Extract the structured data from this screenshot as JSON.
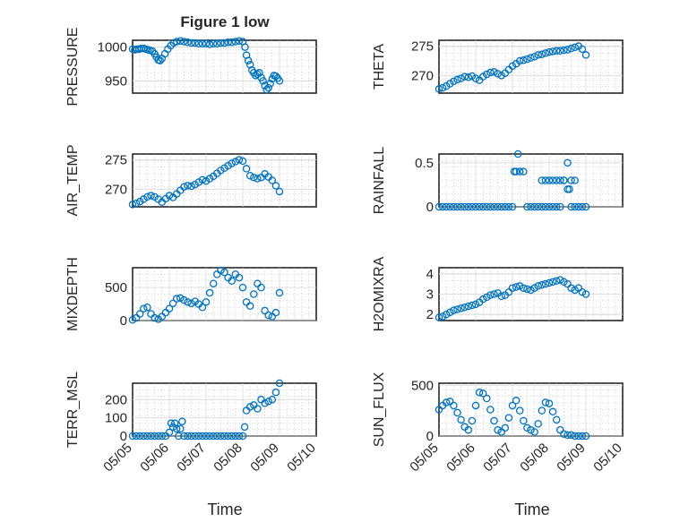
{
  "figure": {
    "title": "Figure 1 low",
    "xlabel": "Time",
    "marker_color": "#0072bd"
  },
  "chart_data": [
    {
      "type": "scatter",
      "title": "Figure 1 low",
      "ylabel": "PRESSURE",
      "xlabel": "",
      "x_unit": "days since 05/05",
      "xlim": [
        0,
        5
      ],
      "xticks": [],
      "ylim": [
        932,
        1010
      ],
      "yticks": [
        950,
        1000
      ],
      "grid": "major-and-minor",
      "x": [
        0.0,
        0.06,
        0.12,
        0.18,
        0.24,
        0.3,
        0.36,
        0.42,
        0.48,
        0.54,
        0.6,
        0.65,
        0.7,
        0.75,
        0.8,
        0.88,
        0.96,
        1.04,
        1.12,
        1.2,
        1.3,
        1.4,
        1.5,
        1.6,
        1.7,
        1.8,
        1.9,
        2.0,
        2.1,
        2.2,
        2.3,
        2.4,
        2.5,
        2.6,
        2.7,
        2.8,
        2.9,
        3.0,
        3.06,
        3.1,
        3.15,
        3.2,
        3.25,
        3.3,
        3.35,
        3.4,
        3.45,
        3.5,
        3.55,
        3.6,
        3.65,
        3.7,
        3.75,
        3.8,
        3.85,
        3.9,
        3.95,
        4.0
      ],
      "y": [
        997,
        996,
        997,
        997,
        998,
        998,
        997,
        996,
        995,
        994,
        990,
        985,
        981,
        980,
        983,
        990,
        997,
        1002,
        1006,
        1008,
        1009,
        1008,
        1007,
        1006,
        1006,
        1005,
        1005,
        1005,
        1004,
        1005,
        1005,
        1006,
        1006,
        1007,
        1007,
        1008,
        1009,
        1008,
        1000,
        988,
        980,
        974,
        966,
        962,
        958,
        960,
        962,
        955,
        950,
        943,
        937,
        940,
        946,
        953,
        958,
        957,
        954,
        950
      ]
    },
    {
      "type": "scatter",
      "title": "",
      "ylabel": "THETA",
      "xlabel": "",
      "x_unit": "days since 05/05",
      "xlim": [
        0,
        5
      ],
      "xticks": [],
      "ylim": [
        267,
        276
      ],
      "yticks": [
        270,
        275
      ],
      "grid": "major-and-minor",
      "x": [
        0.0,
        0.1,
        0.2,
        0.3,
        0.4,
        0.5,
        0.6,
        0.7,
        0.8,
        0.9,
        1.0,
        1.1,
        1.2,
        1.3,
        1.4,
        1.5,
        1.6,
        1.7,
        1.8,
        1.9,
        2.0,
        2.1,
        2.2,
        2.3,
        2.4,
        2.5,
        2.6,
        2.7,
        2.8,
        2.9,
        3.0,
        3.1,
        3.2,
        3.3,
        3.4,
        3.5,
        3.6,
        3.7,
        3.8,
        3.9,
        4.0
      ],
      "y": [
        267.7,
        267.9,
        268.2,
        268.6,
        269.0,
        269.3,
        269.5,
        269.8,
        269.7,
        269.9,
        269.5,
        269.2,
        269.8,
        270.2,
        270.5,
        270.6,
        270.3,
        270.0,
        270.4,
        271.0,
        271.6,
        272.0,
        272.5,
        272.6,
        272.8,
        273.0,
        273.2,
        273.5,
        273.6,
        273.8,
        274.0,
        274.1,
        274.2,
        274.2,
        274.3,
        274.4,
        274.6,
        274.8,
        275.0,
        274.5,
        273.5
      ]
    },
    {
      "type": "scatter",
      "title": "",
      "ylabel": "AIR_TEMP",
      "xlabel": "",
      "x_unit": "days since 05/05",
      "xlim": [
        0,
        5
      ],
      "xticks": [],
      "ylim": [
        267,
        276
      ],
      "yticks": [
        270,
        275
      ],
      "grid": "major-and-minor",
      "x": [
        0.0,
        0.1,
        0.2,
        0.3,
        0.4,
        0.5,
        0.6,
        0.7,
        0.8,
        0.9,
        1.0,
        1.1,
        1.2,
        1.3,
        1.4,
        1.5,
        1.6,
        1.7,
        1.8,
        1.9,
        2.0,
        2.1,
        2.2,
        2.3,
        2.4,
        2.5,
        2.6,
        2.7,
        2.8,
        2.9,
        3.0,
        3.1,
        3.2,
        3.3,
        3.4,
        3.5,
        3.6,
        3.7,
        3.8,
        3.9,
        4.0
      ],
      "y": [
        267.4,
        267.6,
        267.9,
        268.3,
        268.7,
        268.9,
        268.7,
        268.3,
        267.8,
        268.4,
        268.9,
        268.6,
        269.2,
        269.8,
        270.4,
        270.6,
        270.5,
        270.8,
        271.2,
        271.6,
        271.4,
        271.8,
        272.2,
        272.7,
        273.2,
        273.6,
        274.0,
        274.4,
        274.7,
        275.0,
        274.8,
        273.5,
        272.3,
        272.0,
        271.8,
        272.0,
        272.6,
        272.1,
        271.5,
        270.6,
        269.6
      ]
    },
    {
      "type": "scatter",
      "title": "",
      "ylabel": "RAINFALL",
      "xlabel": "",
      "x_unit": "days since 05/05",
      "xlim": [
        0,
        5
      ],
      "xticks": [],
      "ylim": [
        0,
        0.6
      ],
      "yticks": [
        0,
        0.5
      ],
      "grid": "major-and-minor",
      "x": [
        0.0,
        0.1,
        0.2,
        0.3,
        0.4,
        0.5,
        0.6,
        0.7,
        0.8,
        0.9,
        1.0,
        1.1,
        1.2,
        1.3,
        1.4,
        1.5,
        1.6,
        1.7,
        1.8,
        1.9,
        2.0,
        2.05,
        2.1,
        2.15,
        2.2,
        2.3,
        2.4,
        2.5,
        2.6,
        2.7,
        2.8,
        2.9,
        3.0,
        3.1,
        3.2,
        3.3,
        3.4,
        3.5,
        3.6,
        3.7,
        3.8,
        3.9,
        4.0,
        2.8,
        2.9,
        3.0,
        3.1,
        3.2,
        3.3,
        3.4,
        3.5,
        3.55,
        3.6,
        3.7
      ],
      "y": [
        0,
        0,
        0,
        0,
        0,
        0,
        0,
        0,
        0,
        0,
        0,
        0,
        0,
        0,
        0,
        0,
        0,
        0,
        0,
        0,
        0,
        0.4,
        0.4,
        0.6,
        0.4,
        0.4,
        0,
        0,
        0,
        0,
        0,
        0,
        0,
        0,
        0,
        0,
        0.3,
        0.5,
        0,
        0,
        0,
        0,
        0,
        0.3,
        0.3,
        0.3,
        0.3,
        0.3,
        0.3,
        0.3,
        0.2,
        0.2,
        0.3,
        0.3
      ]
    },
    {
      "type": "scatter",
      "title": "",
      "ylabel": "MIXDEPTH",
      "xlabel": "",
      "x_unit": "days since 05/05",
      "xlim": [
        0,
        5
      ],
      "xticks": [],
      "ylim": [
        0,
        800
      ],
      "yticks": [
        0,
        500
      ],
      "grid": "major-and-minor",
      "x": [
        0.0,
        0.1,
        0.2,
        0.3,
        0.4,
        0.5,
        0.6,
        0.7,
        0.8,
        0.9,
        1.0,
        1.1,
        1.2,
        1.3,
        1.4,
        1.5,
        1.6,
        1.7,
        1.8,
        1.9,
        2.0,
        2.1,
        2.2,
        2.3,
        2.4,
        2.5,
        2.6,
        2.7,
        2.8,
        2.9,
        3.0,
        3.1,
        3.2,
        3.3,
        3.4,
        3.5,
        3.6,
        3.7,
        3.8,
        3.9,
        4.0
      ],
      "y": [
        10,
        40,
        100,
        180,
        200,
        100,
        40,
        20,
        60,
        120,
        180,
        260,
        330,
        340,
        310,
        280,
        260,
        290,
        250,
        200,
        280,
        420,
        560,
        700,
        760,
        730,
        650,
        600,
        700,
        650,
        500,
        280,
        220,
        400,
        560,
        500,
        150,
        80,
        60,
        120,
        420
      ]
    },
    {
      "type": "scatter",
      "title": "",
      "ylabel": "H2OMIXRA",
      "xlabel": "",
      "x_unit": "days since 05/05",
      "xlim": [
        0,
        5
      ],
      "xticks": [],
      "ylim": [
        1.7,
        4.3
      ],
      "yticks": [
        2,
        3,
        4
      ],
      "grid": "major-and-minor",
      "x": [
        0.0,
        0.1,
        0.2,
        0.3,
        0.4,
        0.5,
        0.6,
        0.7,
        0.8,
        0.9,
        1.0,
        1.1,
        1.2,
        1.3,
        1.4,
        1.5,
        1.6,
        1.7,
        1.8,
        1.9,
        2.0,
        2.1,
        2.2,
        2.3,
        2.4,
        2.5,
        2.6,
        2.7,
        2.8,
        2.9,
        3.0,
        3.1,
        3.2,
        3.3,
        3.4,
        3.5,
        3.6,
        3.7,
        3.8,
        3.9,
        4.0
      ],
      "y": [
        1.85,
        1.9,
        2.0,
        2.1,
        2.2,
        2.25,
        2.3,
        2.35,
        2.4,
        2.45,
        2.5,
        2.6,
        2.75,
        2.85,
        2.95,
        3.0,
        3.05,
        2.9,
        2.95,
        3.1,
        3.3,
        3.35,
        3.4,
        3.3,
        3.25,
        3.2,
        3.3,
        3.4,
        3.45,
        3.5,
        3.55,
        3.6,
        3.65,
        3.7,
        3.6,
        3.5,
        3.3,
        3.2,
        3.3,
        3.1,
        3.0
      ]
    },
    {
      "type": "scatter",
      "title": "",
      "ylabel": "TERR_MSL",
      "xlabel": "Time",
      "x_unit": "days since 05/05",
      "xlim": [
        0,
        5
      ],
      "xticks": [
        "05/05",
        "05/06",
        "05/07",
        "05/08",
        "05/09",
        "05/10"
      ],
      "ylim": [
        0,
        290
      ],
      "yticks": [
        0,
        100,
        200
      ],
      "grid": "major-and-minor",
      "x": [
        0.0,
        0.1,
        0.2,
        0.3,
        0.4,
        0.5,
        0.6,
        0.7,
        0.8,
        0.9,
        1.0,
        1.05,
        1.1,
        1.15,
        1.2,
        1.25,
        1.3,
        1.35,
        1.4,
        1.5,
        1.6,
        1.7,
        1.8,
        1.9,
        2.0,
        2.1,
        2.2,
        2.3,
        2.4,
        2.5,
        2.6,
        2.7,
        2.8,
        2.9,
        3.0,
        3.05,
        3.1,
        3.2,
        3.3,
        3.4,
        3.5,
        3.6,
        3.7,
        3.8,
        3.9,
        4.0
      ],
      "y": [
        0,
        0,
        0,
        0,
        0,
        0,
        0,
        0,
        0,
        0,
        20,
        70,
        50,
        70,
        40,
        0,
        40,
        80,
        0,
        0,
        0,
        0,
        0,
        0,
        0,
        0,
        0,
        0,
        0,
        0,
        0,
        0,
        0,
        0,
        0,
        50,
        140,
        160,
        170,
        150,
        200,
        180,
        190,
        200,
        240,
        290
      ]
    },
    {
      "type": "scatter",
      "title": "",
      "ylabel": "SUN_FLUX",
      "xlabel": "Time",
      "x_unit": "days since 05/05",
      "xlim": [
        0,
        5
      ],
      "xticks": [
        "05/05",
        "05/06",
        "05/07",
        "05/08",
        "05/09",
        "05/10"
      ],
      "ylim": [
        0,
        520
      ],
      "yticks": [
        0,
        500
      ],
      "grid": "major-and-minor",
      "x": [
        0.0,
        0.1,
        0.2,
        0.3,
        0.4,
        0.5,
        0.6,
        0.7,
        0.8,
        0.9,
        1.0,
        1.1,
        1.2,
        1.3,
        1.4,
        1.5,
        1.6,
        1.7,
        1.8,
        1.9,
        2.0,
        2.1,
        2.2,
        2.3,
        2.4,
        2.5,
        2.6,
        2.7,
        2.8,
        2.9,
        3.0,
        3.1,
        3.2,
        3.3,
        3.4,
        3.5,
        3.6,
        3.7,
        3.8,
        3.9,
        4.0
      ],
      "y": [
        260,
        300,
        330,
        340,
        300,
        230,
        160,
        90,
        60,
        150,
        300,
        430,
        420,
        370,
        260,
        150,
        60,
        40,
        80,
        180,
        300,
        350,
        250,
        150,
        80,
        60,
        40,
        120,
        250,
        330,
        320,
        240,
        160,
        60,
        20,
        10,
        10,
        0,
        0,
        0,
        0
      ]
    }
  ]
}
